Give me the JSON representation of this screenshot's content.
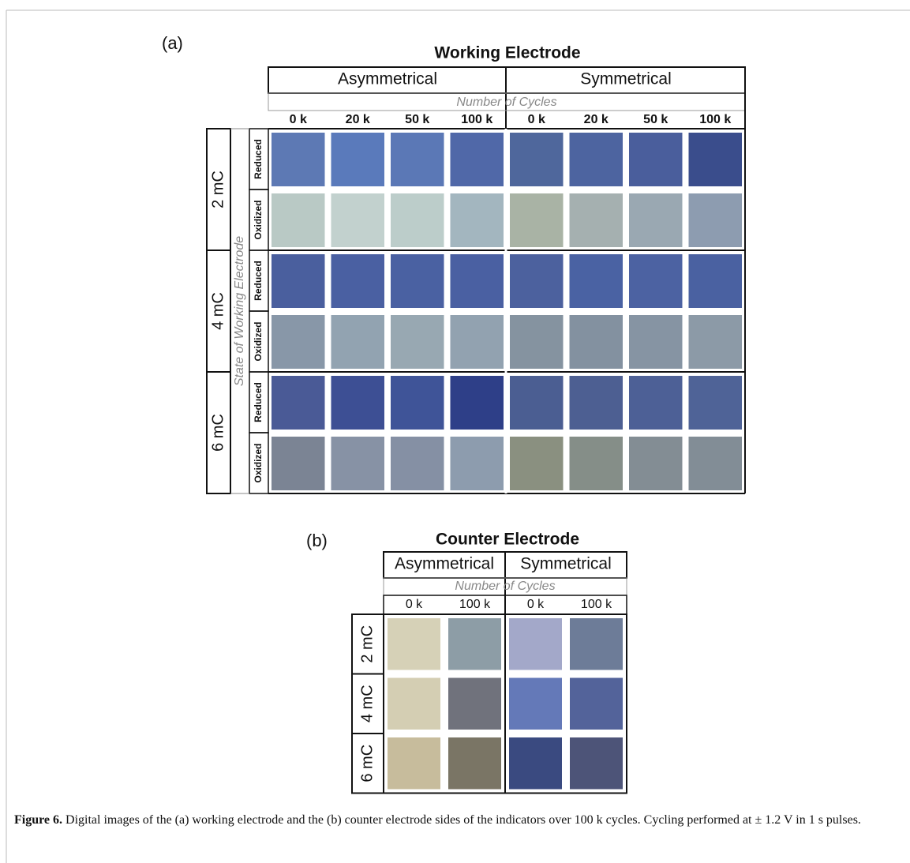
{
  "panel_a": {
    "label": "(a)",
    "title": "Working Electrode",
    "groups": [
      "Asymmetrical",
      "Symmetrical"
    ],
    "axis_label": "Number of Cycles",
    "cycles": [
      "0 k",
      "20 k",
      "50 k",
      "100 k",
      "0 k",
      "20 k",
      "50 k",
      "100 k"
    ],
    "side_label": "State of Working Electrode",
    "charges": [
      "2 mC",
      "4 mC",
      "6 mC"
    ],
    "states": [
      "Reduced",
      "Oxidized"
    ]
  },
  "panel_b": {
    "label": "(b)",
    "title": "Counter Electrode",
    "groups": [
      "Asymmetrical",
      "Symmetrical"
    ],
    "axis_label": "Number of Cycles",
    "cycles": [
      "0 k",
      "100 k",
      "0 k",
      "100 k"
    ],
    "charges": [
      "2 mC",
      "4 mC",
      "6 mC"
    ]
  },
  "caption": {
    "label": "Figure 6.",
    "text": "Digital images of the (a) working electrode and the (b) counter electrode sides of the indicators over 100 k cycles. Cycling performed at ± 1.2 V in 1 s pulses."
  }
}
